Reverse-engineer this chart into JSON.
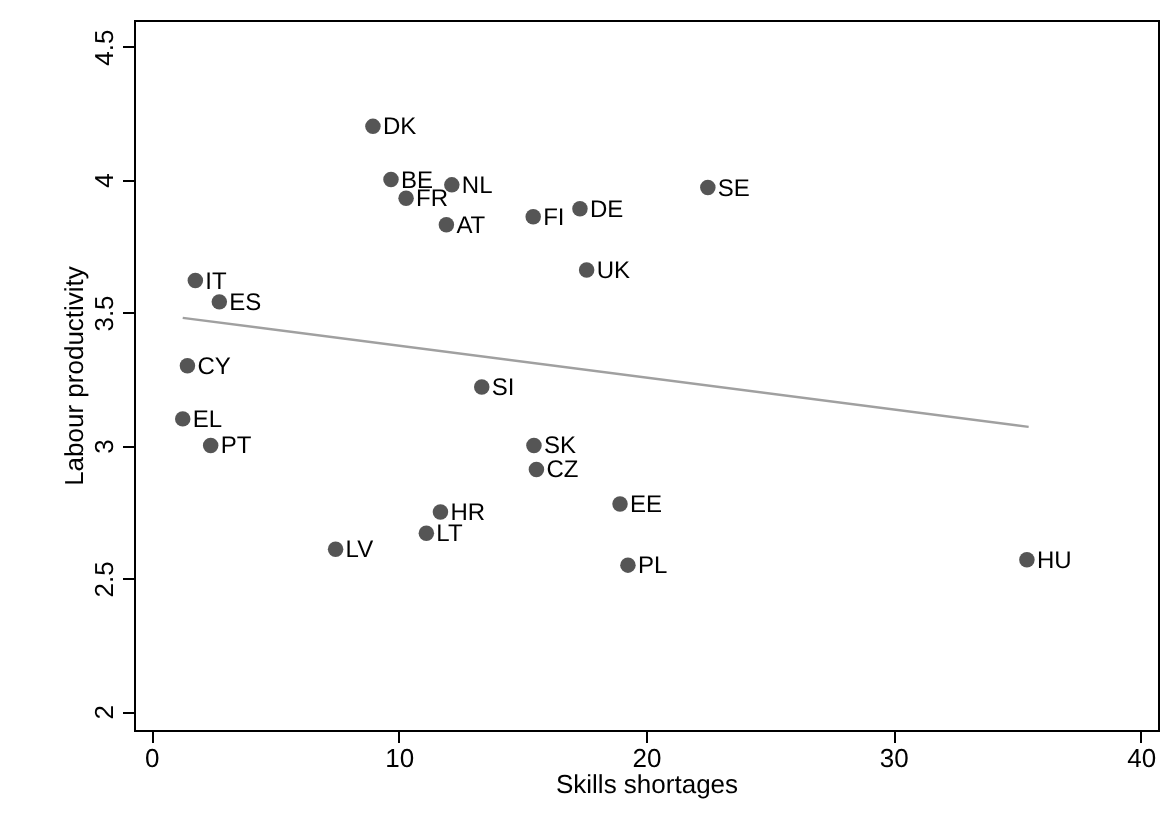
{
  "chart_data": {
    "type": "scatter",
    "xlabel": "Skills shortages",
    "ylabel": "Labour productivity",
    "xlim": [
      -0.7,
      40.7
    ],
    "ylim": [
      1.93,
      4.6
    ],
    "xticks": [
      0,
      10,
      20,
      30,
      40
    ],
    "yticks": [
      2,
      2.5,
      3,
      3.5,
      4,
      4.5
    ],
    "grid": false,
    "marker": "circle",
    "series": [
      {
        "color": "#555555",
        "x": [
          8.96,
          9.69,
          10.3,
          12.15,
          11.93,
          15.44,
          17.33,
          22.5,
          17.6,
          1.78,
          2.75,
          1.46,
          13.36,
          1.27,
          2.4,
          15.47,
          15.57,
          11.69,
          11.12,
          7.45,
          18.95,
          19.27,
          35.4
        ],
        "values": [
          4.2,
          4.0,
          3.93,
          3.98,
          3.83,
          3.86,
          3.89,
          3.97,
          3.66,
          3.62,
          3.54,
          3.3,
          3.22,
          3.1,
          3.0,
          3.0,
          2.91,
          2.75,
          2.67,
          2.61,
          2.78,
          2.55,
          2.57
        ],
        "value_labels": [
          "DK",
          "BE",
          "FR",
          "NL",
          "AT",
          "FI",
          "DE",
          "SE",
          "UK",
          "IT",
          "ES",
          "CY",
          "SI",
          "EL",
          "PT",
          "SK",
          "CZ",
          "HR",
          "LT",
          "LV",
          "EE",
          "PL",
          "HU"
        ]
      },
      {
        "type": "line",
        "color": "#a0a0a0",
        "marker": "none",
        "x": [
          1.27,
          35.47
        ],
        "values": [
          3.48,
          3.07
        ]
      }
    ]
  }
}
